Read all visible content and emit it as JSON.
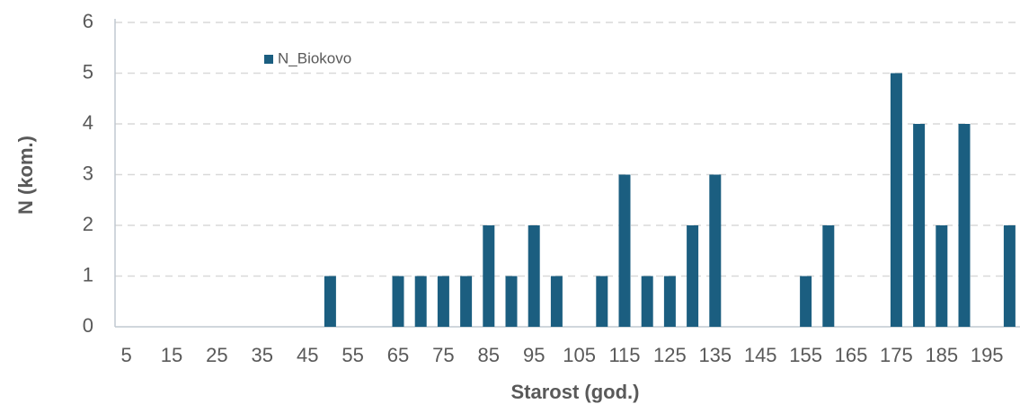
{
  "chart_data": {
    "type": "bar",
    "x_label": "Starost (god.)",
    "y_label": "N (kom.)",
    "categories": [
      5,
      null,
      15,
      null,
      25,
      null,
      35,
      null,
      45,
      null,
      55,
      null,
      65,
      null,
      75,
      null,
      85,
      null,
      95,
      null,
      105,
      null,
      115,
      null,
      125,
      null,
      135,
      null,
      145,
      null,
      155,
      null,
      165,
      null,
      175,
      null,
      185,
      null,
      195,
      null
    ],
    "series": [
      {
        "name": "N_Biokovo",
        "color": "#1b5e80",
        "values": [
          0,
          0,
          0,
          0,
          0,
          0,
          0,
          0,
          0,
          1,
          0,
          0,
          1,
          1,
          1,
          1,
          2,
          1,
          2,
          1,
          0,
          1,
          3,
          1,
          1,
          2,
          3,
          0,
          0,
          0,
          1,
          2,
          0,
          0,
          5,
          4,
          2,
          4,
          0,
          2
        ]
      }
    ],
    "ylim": [
      0,
      6
    ],
    "yticks": [
      0,
      1,
      2,
      3,
      4,
      5,
      6
    ],
    "grid": true,
    "legend": "top-left"
  }
}
